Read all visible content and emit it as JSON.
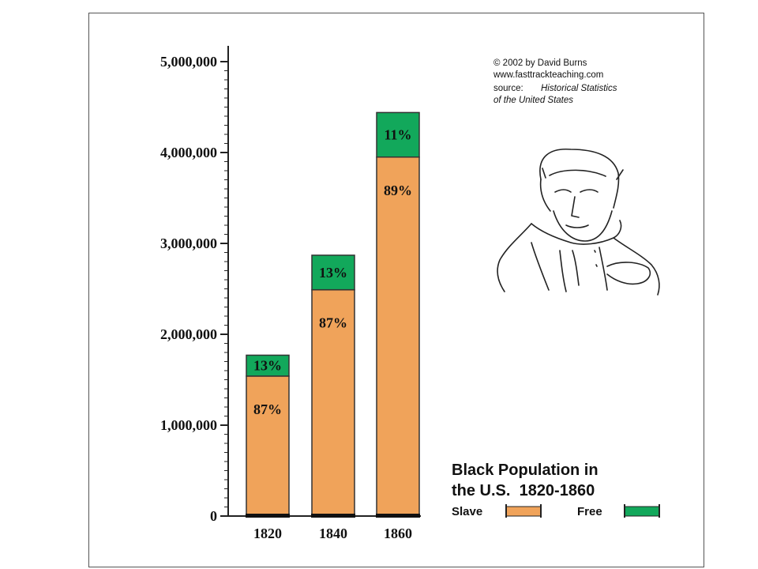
{
  "credits": {
    "copyright": "© 2002 by David Burns",
    "website": "www.fasttrackteaching.com",
    "source_prefix": "source:",
    "source_line1": "Historical Statistics",
    "source_line2": "of the United States"
  },
  "colors": {
    "slave": "#f0a35a",
    "free": "#12a85b",
    "outline": "#333333",
    "axis": "#222222"
  },
  "illustration": {
    "icon": "portrait-sketch-icon"
  },
  "chart_data": {
    "type": "bar",
    "stacked": true,
    "title_line1": "Black Population in",
    "title_line2": "the U.S.  1820-1860",
    "xlabel": "",
    "ylabel": "",
    "ylim": [
      0,
      5000000
    ],
    "yticks": [
      0,
      1000000,
      2000000,
      3000000,
      4000000,
      5000000
    ],
    "ytick_labels": [
      "0",
      "1,000,000",
      "2,000,000",
      "3,000,000",
      "4,000,000",
      "5,000,000"
    ],
    "categories": [
      "1820",
      "1840",
      "1860"
    ],
    "series": [
      {
        "name": "Slave",
        "values": [
          1540000,
          2490000,
          3950000
        ],
        "labels": [
          "87%",
          "87%",
          "89%"
        ]
      },
      {
        "name": "Free",
        "values": [
          230000,
          380000,
          490000
        ],
        "labels": [
          "13%",
          "13%",
          "11%"
        ]
      }
    ],
    "totals": [
      1770000,
      2870000,
      4440000
    ],
    "legend": {
      "position": "bottom-right"
    }
  }
}
